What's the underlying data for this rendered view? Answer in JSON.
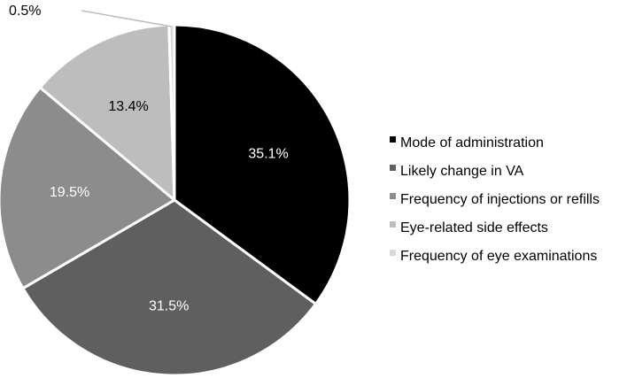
{
  "chart_data": {
    "type": "pie",
    "title": "",
    "slices": [
      {
        "label": "Mode of administration",
        "value": 35.1,
        "display": "35.1%",
        "color": "#000000",
        "text_color": "#ffffff"
      },
      {
        "label": "Likely change in VA",
        "value": 31.5,
        "display": "31.5%",
        "color": "#5f5f5f",
        "text_color": "#ffffff"
      },
      {
        "label": "Frequency of injections or refills",
        "value": 19.5,
        "display": "19.5%",
        "color": "#8c8c8c",
        "text_color": "#ffffff"
      },
      {
        "label": "Eye-related side effects",
        "value": 13.4,
        "display": "13.4%",
        "color": "#bdbdbd",
        "text_color": "#000000"
      },
      {
        "label": "Frequency of eye examinations",
        "value": 0.5,
        "display": "0.5%",
        "color": "#d9d9d9",
        "text_color": "#000000"
      }
    ],
    "legend_position": "right",
    "start_angle": "12 o'clock",
    "direction": "clockwise"
  }
}
